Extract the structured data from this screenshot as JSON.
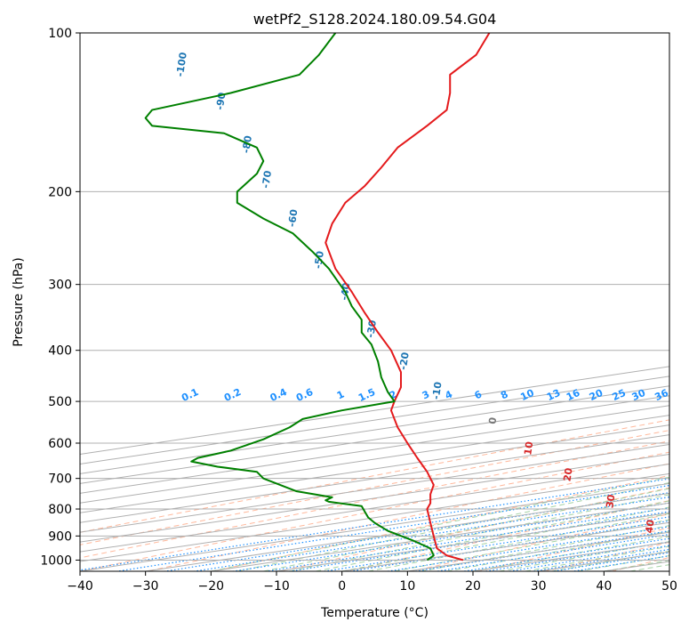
{
  "chart_data": {
    "type": "skew-t",
    "title": "wetPf2_S128.2024.180.09.54.G04",
    "xlabel": "Temperature (°C)",
    "ylabel": "Pressure (hPa)",
    "xlim": [
      -40,
      50
    ],
    "ylim": [
      1050,
      100
    ],
    "yscale": "log",
    "grid": true,
    "x_ticks": [
      "−40",
      "−30",
      "−20",
      "−10",
      "0",
      "10",
      "20",
      "30",
      "40",
      "50"
    ],
    "x_tick_values": [
      -40,
      -30,
      -20,
      -10,
      0,
      10,
      20,
      30,
      40,
      50
    ],
    "y_ticks": [
      "100",
      "200",
      "300",
      "400",
      "500",
      "600",
      "700",
      "800",
      "900",
      "1000"
    ],
    "y_tick_values": [
      100,
      200,
      300,
      400,
      500,
      600,
      700,
      800,
      900,
      1000
    ],
    "colors": {
      "temperature": "#e41a1c",
      "dewpoint": "#008000",
      "isotherm": "#b0b0b0",
      "dry_adiabat": "#ffa07a",
      "moist_adiabat": "#90c890",
      "mixing_ratio": "#1e90ff",
      "grid": "#b0b0b0",
      "zero_isotherm": "#777777",
      "upper_isotherm_labels": "#1f77b4",
      "lower_isotherm_labels": "#d62728",
      "mixing_ratio_labels": "#1e90ff"
    },
    "series": [
      {
        "role": "temperature",
        "points": [
          {
            "p": 1000,
            "x": 18.5
          },
          {
            "p": 980,
            "x": 16.0
          },
          {
            "p": 950,
            "x": 14.5
          },
          {
            "p": 900,
            "x": 14.0
          },
          {
            "p": 850,
            "x": 13.5
          },
          {
            "p": 800,
            "x": 13.0
          },
          {
            "p": 780,
            "x": 13.5
          },
          {
            "p": 750,
            "x": 13.5
          },
          {
            "p": 720,
            "x": 14.0
          },
          {
            "p": 680,
            "x": 13.0
          },
          {
            "p": 640,
            "x": 11.5
          },
          {
            "p": 600,
            "x": 10.0
          },
          {
            "p": 560,
            "x": 8.5
          },
          {
            "p": 520,
            "x": 7.5
          },
          {
            "p": 500,
            "x": 8.0
          },
          {
            "p": 470,
            "x": 9.0
          },
          {
            "p": 440,
            "x": 9.0
          },
          {
            "p": 400,
            "x": 7.5
          },
          {
            "p": 370,
            "x": 5.5
          },
          {
            "p": 340,
            "x": 3.5
          },
          {
            "p": 310,
            "x": 1.5
          },
          {
            "p": 280,
            "x": -1.0
          },
          {
            "p": 250,
            "x": -2.5
          },
          {
            "p": 230,
            "x": -1.5
          },
          {
            "p": 210,
            "x": 0.5
          },
          {
            "p": 195,
            "x": 3.5
          },
          {
            "p": 180,
            "x": 6.0
          },
          {
            "p": 165,
            "x": 8.5
          },
          {
            "p": 150,
            "x": 13.0
          },
          {
            "p": 140,
            "x": 16.0
          },
          {
            "p": 130,
            "x": 16.5
          },
          {
            "p": 120,
            "x": 16.5
          },
          {
            "p": 110,
            "x": 20.5
          },
          {
            "p": 100,
            "x": 22.5
          }
        ]
      },
      {
        "role": "dewpoint",
        "points": [
          {
            "p": 1000,
            "x": 13.0
          },
          {
            "p": 980,
            "x": 14.0
          },
          {
            "p": 950,
            "x": 13.5
          },
          {
            "p": 920,
            "x": 11.0
          },
          {
            "p": 880,
            "x": 7.0
          },
          {
            "p": 850,
            "x": 5.0
          },
          {
            "p": 830,
            "x": 4.0
          },
          {
            "p": 810,
            "x": 3.5
          },
          {
            "p": 790,
            "x": 3.0
          },
          {
            "p": 775,
            "x": -2.0
          },
          {
            "p": 770,
            "x": -2.5
          },
          {
            "p": 760,
            "x": -1.5
          },
          {
            "p": 740,
            "x": -7.0
          },
          {
            "p": 700,
            "x": -12.0
          },
          {
            "p": 680,
            "x": -13.0
          },
          {
            "p": 665,
            "x": -19.0
          },
          {
            "p": 650,
            "x": -23.0
          },
          {
            "p": 640,
            "x": -22.0
          },
          {
            "p": 620,
            "x": -17.0
          },
          {
            "p": 590,
            "x": -12.0
          },
          {
            "p": 560,
            "x": -8.0
          },
          {
            "p": 540,
            "x": -6.0
          },
          {
            "p": 520,
            "x": 0.0
          },
          {
            "p": 500,
            "x": 8.0
          },
          {
            "p": 480,
            "x": 7.0
          },
          {
            "p": 450,
            "x": 6.0
          },
          {
            "p": 420,
            "x": 5.5
          },
          {
            "p": 390,
            "x": 4.5
          },
          {
            "p": 370,
            "x": 3.0
          },
          {
            "p": 350,
            "x": 3.0
          },
          {
            "p": 330,
            "x": 1.5
          },
          {
            "p": 310,
            "x": 0.5
          },
          {
            "p": 280,
            "x": -2.0
          },
          {
            "p": 260,
            "x": -4.5
          },
          {
            "p": 240,
            "x": -7.5
          },
          {
            "p": 225,
            "x": -12.0
          },
          {
            "p": 210,
            "x": -16.0
          },
          {
            "p": 200,
            "x": -16.0
          },
          {
            "p": 185,
            "x": -13.0
          },
          {
            "p": 175,
            "x": -12.0
          },
          {
            "p": 165,
            "x": -13.0
          },
          {
            "p": 155,
            "x": -18.0
          },
          {
            "p": 150,
            "x": -29.0
          },
          {
            "p": 145,
            "x": -30.0
          },
          {
            "p": 140,
            "x": -29.0
          },
          {
            "p": 130,
            "x": -17.0
          },
          {
            "p": 120,
            "x": -6.5
          },
          {
            "p": 110,
            "x": -3.5
          },
          {
            "p": 100,
            "x": -1.0
          }
        ]
      }
    ],
    "isotherm_labels_upper": [
      {
        "text": "-100",
        "p": 115,
        "x": -24
      },
      {
        "text": "-90",
        "p": 135,
        "x": -18
      },
      {
        "text": "-80",
        "p": 163,
        "x": -14
      },
      {
        "text": "-70",
        "p": 190,
        "x": -11
      },
      {
        "text": "-60",
        "p": 225,
        "x": -7
      },
      {
        "text": "-50",
        "p": 270,
        "x": -3
      },
      {
        "text": "-40",
        "p": 310,
        "x": 1
      },
      {
        "text": "-30",
        "p": 365,
        "x": 5
      },
      {
        "text": "-20",
        "p": 420,
        "x": 10
      },
      {
        "text": "-10",
        "p": 478,
        "x": 15
      }
    ],
    "isotherm_labels_lower": [
      {
        "text": "0",
        "p": 545,
        "x": 23.5,
        "color": "#777777"
      },
      {
        "text": "10",
        "p": 615,
        "x": 29
      },
      {
        "text": "20",
        "p": 690,
        "x": 35
      },
      {
        "text": "30",
        "p": 775,
        "x": 41.5
      },
      {
        "text": "40",
        "p": 865,
        "x": 47.5
      }
    ],
    "mixing_ratio_labels": [
      {
        "text": "0.1",
        "x": -23
      },
      {
        "text": "0.2",
        "x": -16.5
      },
      {
        "text": "0.4",
        "x": -9.5
      },
      {
        "text": "0.6",
        "x": -5.5
      },
      {
        "text": "1",
        "x": 0
      },
      {
        "text": "1.5",
        "x": 4
      },
      {
        "text": "2",
        "x": 8
      },
      {
        "text": "3",
        "x": 13
      },
      {
        "text": "4",
        "x": 16.5
      },
      {
        "text": "6",
        "x": 21
      },
      {
        "text": "8",
        "x": 25
      },
      {
        "text": "10",
        "x": 28.5
      },
      {
        "text": "13",
        "x": 32.5
      },
      {
        "text": "16",
        "x": 35.5
      },
      {
        "text": "20",
        "x": 39
      },
      {
        "text": "25",
        "x": 42.5
      },
      {
        "text": "30",
        "x": 45.5
      },
      {
        "text": "36",
        "x": 49
      }
    ]
  }
}
